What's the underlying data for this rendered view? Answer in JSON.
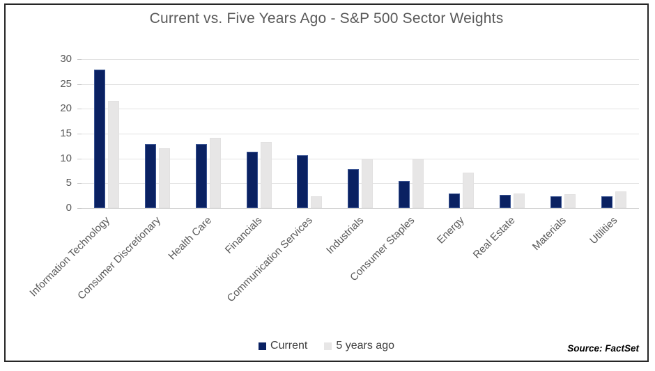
{
  "chart_data": {
    "type": "bar",
    "title": "Current vs. Five Years Ago - S&P 500 Sector Weights",
    "categories": [
      "Information Technology",
      "Consumer Discretionary",
      "Health Care",
      "Financials",
      "Communication Services",
      "Industrials",
      "Consumer Staples",
      "Energy",
      "Real Estate",
      "Materials",
      "Utilities"
    ],
    "series": [
      {
        "name": "Current",
        "color": "#0a2162",
        "values": [
          27.9,
          12.9,
          12.9,
          11.4,
          10.7,
          7.9,
          5.5,
          2.9,
          2.6,
          2.4,
          2.4
        ]
      },
      {
        "name": "5 years ago",
        "color": "#e7e6e6",
        "values": [
          21.6,
          12.1,
          14.1,
          13.3,
          2.4,
          10,
          9.9,
          7.1,
          2.9,
          2.8,
          3.3
        ]
      }
    ],
    "xlabel": "",
    "ylabel": "",
    "ylim": [
      0,
      30
    ],
    "y_ticks": [
      0,
      5,
      10,
      15,
      20,
      25,
      30
    ],
    "grid": true,
    "legend_position": "bottom"
  },
  "footer": {
    "source": "Source: FactSet"
  },
  "colors": {
    "current": "#0a2162",
    "five_years_ago": "#e7e6e6",
    "title_text": "#595959",
    "axis_text": "#595959",
    "legend_text": "#404040",
    "gridline": "#e2e2e2",
    "frame_border": "#262626"
  }
}
